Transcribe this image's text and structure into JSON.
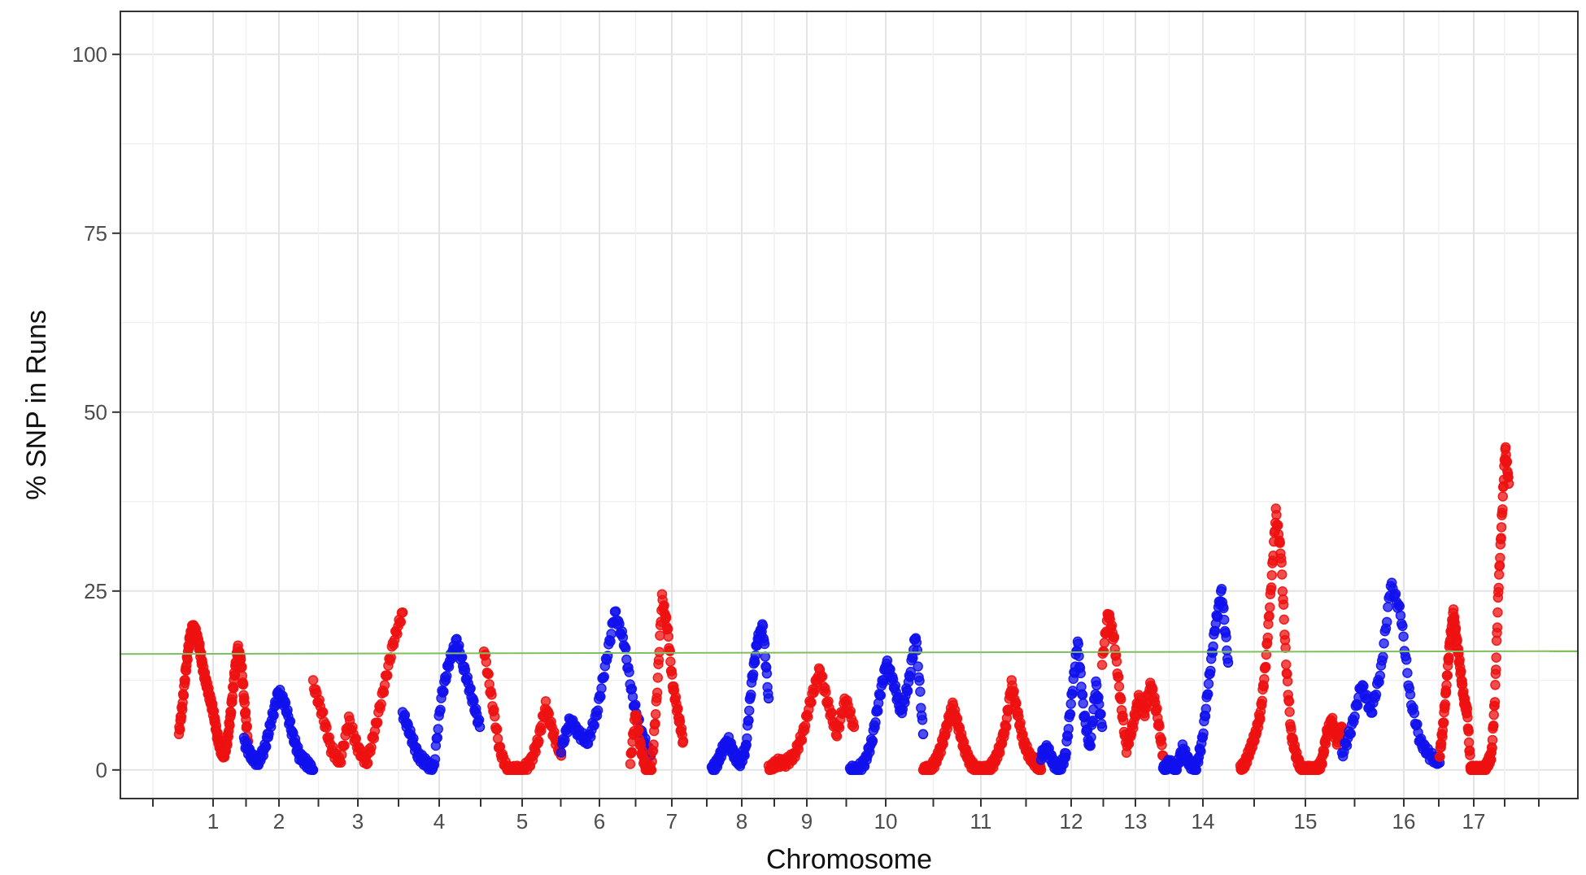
{
  "chart_data": {
    "type": "scatter",
    "title": "",
    "xlabel": "Chromosome",
    "ylabel": "% SNP in Runs",
    "ylim": [
      -4,
      106
    ],
    "yticks": [
      0,
      25,
      50,
      75,
      100
    ],
    "grid": true,
    "legend": "none",
    "threshold": {
      "start": 16.2,
      "end": 16.6,
      "color": "#7fbf5f"
    },
    "colors": {
      "red": "#ee1111",
      "blue": "#1111ee"
    },
    "chromosomes": [
      {
        "label": "1",
        "color": "red",
        "x": [
          0.0,
          0.05,
          0.1,
          0.15,
          0.2,
          0.25,
          0.3,
          0.35,
          0.4,
          0.45,
          0.5,
          0.55,
          0.6,
          0.65,
          0.7,
          0.75,
          0.8,
          0.85,
          0.9,
          0.95,
          1.0
        ],
        "y": [
          5,
          9,
          14,
          18,
          20,
          19,
          17,
          14,
          12,
          10,
          8,
          5,
          3,
          2,
          4,
          8,
          13,
          17,
          15,
          9,
          4
        ]
      },
      {
        "label": "2",
        "color": "blue",
        "x": [
          0.0,
          0.1,
          0.2,
          0.3,
          0.4,
          0.5,
          0.6,
          0.7,
          0.8,
          0.9,
          1.0
        ],
        "y": [
          4,
          2,
          1,
          3,
          7,
          11,
          9,
          5,
          2,
          1,
          0
        ]
      },
      {
        "label": "3",
        "color": "red",
        "x": [
          0.0,
          0.1,
          0.2,
          0.3,
          0.4,
          0.5,
          0.6,
          0.7,
          0.8,
          0.9,
          1.0
        ],
        "y": [
          12,
          8,
          3,
          1,
          7,
          3,
          1,
          6,
          12,
          18,
          22
        ]
      },
      {
        "label": "4",
        "color": "blue",
        "x": [
          0.0,
          0.1,
          0.2,
          0.3,
          0.4,
          0.5,
          0.6,
          0.7,
          0.8,
          0.9,
          1.0
        ],
        "y": [
          8,
          5,
          2,
          1,
          0,
          10,
          15,
          18,
          14,
          10,
          6
        ]
      },
      {
        "label": "5",
        "color": "red",
        "x": [
          0.0,
          0.1,
          0.2,
          0.3,
          0.4,
          0.5,
          0.6,
          0.7,
          0.8,
          0.9,
          1.0
        ],
        "y": [
          17,
          10,
          3,
          0,
          0,
          0,
          1,
          4,
          9,
          5,
          2
        ]
      },
      {
        "label": "6",
        "color": "blue",
        "x": [
          0.0,
          0.1,
          0.2,
          0.3,
          0.4,
          0.5,
          0.6,
          0.7,
          0.8,
          0.9,
          1.0
        ],
        "y": [
          3,
          7,
          5,
          4,
          8,
          15,
          22,
          18,
          10,
          5,
          2
        ]
      },
      {
        "label": "7",
        "color": "red",
        "x": [
          0.0,
          0.1,
          0.2,
          0.3,
          0.4,
          0.5,
          0.6,
          0.7,
          0.8,
          0.9,
          1.0
        ],
        "y": [
          1,
          8,
          3,
          0,
          0,
          10,
          24,
          20,
          12,
          8,
          4
        ]
      },
      {
        "label": "8",
        "color": "blue",
        "x": [
          0.0,
          0.1,
          0.2,
          0.3,
          0.4,
          0.5,
          0.6,
          0.7,
          0.8,
          0.9,
          1.0
        ],
        "y": [
          0,
          1,
          3,
          4,
          2,
          1,
          3,
          12,
          18,
          20,
          10
        ]
      },
      {
        "label": "9",
        "color": "red",
        "x": [
          0.0,
          0.1,
          0.2,
          0.3,
          0.4,
          0.5,
          0.6,
          0.7,
          0.8,
          0.9,
          1.0
        ],
        "y": [
          0,
          1,
          1,
          2,
          5,
          10,
          14,
          9,
          5,
          10,
          6
        ]
      },
      {
        "label": "10",
        "color": "blue",
        "x": [
          0.0,
          0.1,
          0.2,
          0.3,
          0.4,
          0.5,
          0.6,
          0.7,
          0.8,
          0.9,
          1.0
        ],
        "y": [
          0,
          0,
          1,
          4,
          10,
          15,
          12,
          8,
          12,
          19,
          5
        ]
      },
      {
        "label": "11",
        "color": "red",
        "x": [
          0.0,
          0.05,
          0.1,
          0.15,
          0.2,
          0.25,
          0.3,
          0.35,
          0.4,
          0.45,
          0.5,
          0.55,
          0.6,
          0.65,
          0.7,
          0.75,
          0.8,
          0.85,
          0.9,
          0.95,
          1.0
        ],
        "y": [
          0,
          0,
          1,
          3,
          6,
          9,
          6,
          3,
          1,
          0,
          0,
          0,
          1,
          3,
          6,
          12,
          8,
          4,
          2,
          1,
          0
        ]
      },
      {
        "label": "12",
        "color": "blue",
        "x": [
          0.0,
          0.1,
          0.2,
          0.3,
          0.4,
          0.5,
          0.6,
          0.7,
          0.8,
          0.9,
          1.0
        ],
        "y": [
          2,
          3,
          1,
          0,
          2,
          10,
          18,
          8,
          3,
          12,
          6
        ]
      },
      {
        "label": "13",
        "color": "red",
        "x": [
          0.0,
          0.1,
          0.2,
          0.3,
          0.4,
          0.5,
          0.6,
          0.7,
          0.8,
          0.9,
          1.0
        ],
        "y": [
          15,
          22,
          18,
          10,
          3,
          6,
          10,
          8,
          12,
          8,
          2
        ]
      },
      {
        "label": "14",
        "color": "blue",
        "x": [
          0.0,
          0.1,
          0.2,
          0.3,
          0.4,
          0.5,
          0.6,
          0.7,
          0.8,
          0.9,
          1.0
        ],
        "y": [
          0,
          1,
          0,
          3,
          1,
          0,
          4,
          12,
          20,
          25,
          15
        ]
      },
      {
        "label": "15",
        "color": "red",
        "x": [
          0.0,
          0.05,
          0.1,
          0.15,
          0.2,
          0.25,
          0.3,
          0.35,
          0.4,
          0.45,
          0.5,
          0.55,
          0.6,
          0.65,
          0.7,
          0.75,
          0.8,
          0.85,
          0.9,
          0.95,
          1.0
        ],
        "y": [
          0,
          1,
          3,
          5,
          8,
          15,
          25,
          36,
          30,
          15,
          5,
          2,
          0,
          0,
          0,
          0,
          1,
          5,
          7,
          4,
          6
        ]
      },
      {
        "label": "16",
        "color": "blue",
        "x": [
          0.0,
          0.1,
          0.2,
          0.3,
          0.4,
          0.5,
          0.6,
          0.7,
          0.8,
          0.9,
          1.0
        ],
        "y": [
          2,
          6,
          12,
          8,
          14,
          26,
          22,
          10,
          4,
          2,
          1
        ]
      },
      {
        "label": "17",
        "color": "red",
        "x": [
          0.0,
          0.05,
          0.1,
          0.15,
          0.2,
          0.25,
          0.3,
          0.35,
          0.4,
          0.45,
          0.5,
          0.55,
          0.6,
          0.65,
          0.7,
          0.75,
          0.8,
          0.85,
          0.9,
          0.95,
          1.0
        ],
        "y": [
          2,
          6,
          12,
          18,
          22,
          18,
          14,
          10,
          8,
          0,
          0,
          0,
          0,
          0,
          1,
          2,
          10,
          25,
          35,
          45,
          40
        ]
      }
    ]
  }
}
